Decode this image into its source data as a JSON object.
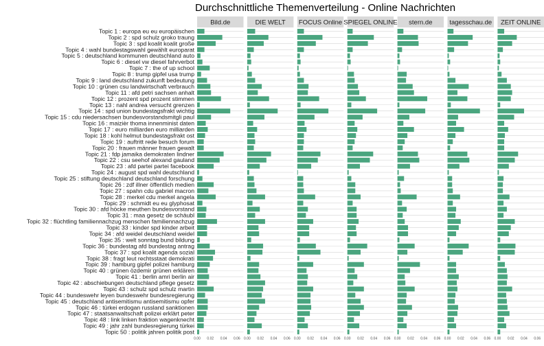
{
  "chart_data": {
    "type": "bar",
    "orientation": "horizontal",
    "title": "Durchschnittliche Themenverteilung - Online Nachrichten",
    "xlabel": "",
    "ylabel": "",
    "xlim": [
      0,
      0.07
    ],
    "x_ticks": [
      "0.00",
      "0.02",
      "0.04",
      "0.06"
    ],
    "x_tick_values": [
      0,
      0.02,
      0.04,
      0.06
    ],
    "grid": true,
    "bar_color": "#4aa57f",
    "strip_color": "#d9d9d9",
    "gridline_color": "#d4d4d4",
    "categories": [
      "Topic 1 : europa eu eu europäischen",
      "Topic 2 : spd schulz groko traung",
      "Topic 3 : spd koalit koalit große",
      "Topic 4 : wahl bundestagswahl gewählt europarat",
      "Topic 5 : deutschland kommunen deutschland auto",
      "Topic 6 : diesel vw diesel fahrverbot",
      "Topic 7 : the of up school",
      "Topic 8 : trump gipfel usa trump",
      "Topic 9 : land deutschland zukunft bedeutung",
      "Topic 10 : grünen csu landwirtschaft verbrauch",
      "Topic 11 : afd petri sachsen anhalt",
      "Topic 12 : prozent spd prozent stimmen",
      "Topic 13 : nahl andrea versucht grenzen",
      "Topic 14 : spd union bundestagsfrakt wichtig",
      "Topic 15 : cdu niedersachsen bundesvorstandsmitgli paul",
      "Topic 16 : maizièr thoma innenminist daten",
      "Topic 17 : euro milliarden euro milliarden",
      "Topic 18 : kohl helmut bundestagsfrakt ost",
      "Topic 19 : auftritt rede besuch forum",
      "Topic 20 : frauen männer frauen gewalt",
      "Topic 21 : fdp jamaika demokraten lindner",
      "Topic 22 : csu seehof alexand gauland",
      "Topic 23 : afd partei partei facebook",
      "Topic 24 : august spd wahl deutschland",
      "Topic 25 : stiftung deutschland deutschland forschung",
      "Topic 26 : zdf illner öffentlich medien",
      "Topic 27 : spahn cdu gabriel macron",
      "Topic 28 : merkel cdu merkel angela",
      "Topic 29 : schmidt eu eu glyphosat",
      "Topic 30 : afd höcke meuthen bundesvorstand",
      "Topic 31 : maa gesetz de schäubl",
      "Topic 32 : flüchtling familiennachzug menschen familiennachzug",
      "Topic 33 : kinder spd kinder arbeit",
      "Topic 34 : afd weidel deutschland weidel",
      "Topic 35 : welt sonntag bund bildung",
      "Topic 36 : bundestag afd bundestag antrag",
      "Topic 37 : spd koalit agenda sozial",
      "Topic 38 : fragt leut rechtsstaat demokrati",
      "Topic 39 : hamburg gipfel polizei hamburg",
      "Topic 40 : grünen özdemir grünen erklären",
      "Topic 41 : berlin amri berlin air",
      "Topic 42 : abschiebungen deutschland pflege gesetz",
      "Topic 43 : schulz spd schulz martin",
      "Topic 44 : bundeswehr leyen bundeswehr bundesregierung",
      "Topic 45 : deutschland antisemitismu antisemitismu opfer",
      "Topic 46 : türkei erdogan russland sanktionen",
      "Topic 47 : staatsanwaltschaft polizei erklärt peter",
      "Topic 48 : link linken fraktion wagenknecht",
      "Topic 49 : jahr zahl bundesregierung türkei",
      "Topic 50 : politik jahren politik post"
    ],
    "series": [
      {
        "name": "Bild.de",
        "values": [
          0.011,
          0.038,
          0.028,
          0.011,
          0.005,
          0.008,
          0.019,
          0.006,
          0.015,
          0.02,
          0.021,
          0.036,
          0.004,
          0.05,
          0.021,
          0.013,
          0.016,
          0.012,
          0.01,
          0.01,
          0.04,
          0.034,
          0.025,
          0.003,
          0.008,
          0.025,
          0.017,
          0.028,
          0.008,
          0.014,
          0.013,
          0.03,
          0.015,
          0.015,
          0.004,
          0.019,
          0.027,
          0.024,
          0.019,
          0.016,
          0.018,
          0.015,
          0.025,
          0.012,
          0.016,
          0.016,
          0.014,
          0.01,
          0.01,
          0.003
        ]
      },
      {
        "name": "DIE WELT",
        "values": [
          0.012,
          0.032,
          0.025,
          0.01,
          0.005,
          0.006,
          0.002,
          0.007,
          0.012,
          0.022,
          0.016,
          0.033,
          0.004,
          0.046,
          0.026,
          0.009,
          0.015,
          0.011,
          0.012,
          0.01,
          0.036,
          0.029,
          0.019,
          0.003,
          0.01,
          0.011,
          0.014,
          0.027,
          0.008,
          0.019,
          0.012,
          0.027,
          0.017,
          0.018,
          0.006,
          0.024,
          0.023,
          0.005,
          0.018,
          0.017,
          0.02,
          0.027,
          0.024,
          0.022,
          0.027,
          0.018,
          0.014,
          0.011,
          0.022,
          0.004
        ]
      },
      {
        "name": "FOCUS Online",
        "values": [
          0.01,
          0.038,
          0.028,
          0.01,
          0.004,
          0.005,
          0.002,
          0.004,
          0.01,
          0.017,
          0.016,
          0.033,
          0.005,
          0.047,
          0.026,
          0.011,
          0.014,
          0.01,
          0.01,
          0.009,
          0.035,
          0.031,
          0.021,
          0.001,
          0.009,
          0.009,
          0.01,
          0.027,
          0.009,
          0.016,
          0.013,
          0.024,
          0.018,
          0.018,
          0.004,
          0.028,
          0.035,
          0.003,
          0.024,
          0.014,
          0.016,
          0.015,
          0.024,
          0.02,
          0.02,
          0.021,
          0.019,
          0.011,
          0.016,
          0.003
        ]
      },
      {
        "name": "SPIEGEL ONLINE",
        "values": [
          0.008,
          0.04,
          0.031,
          0.008,
          0.004,
          0.005,
          0.001,
          0.01,
          0.011,
          0.016,
          0.018,
          0.028,
          0.006,
          0.045,
          0.023,
          0.011,
          0.015,
          0.013,
          0.011,
          0.008,
          0.039,
          0.034,
          0.019,
          0.002,
          0.006,
          0.012,
          0.012,
          0.02,
          0.008,
          0.014,
          0.014,
          0.017,
          0.013,
          0.014,
          0.004,
          0.03,
          0.02,
          0.002,
          0.025,
          0.011,
          0.015,
          0.009,
          0.025,
          0.012,
          0.02,
          0.025,
          0.019,
          0.01,
          0.018,
          0.003
        ]
      },
      {
        "name": "stern.de",
        "values": [
          0.009,
          0.031,
          0.032,
          0.007,
          0.003,
          0.004,
          0.001,
          0.014,
          0.013,
          0.023,
          0.025,
          0.045,
          0.003,
          0.042,
          0.018,
          0.009,
          0.025,
          0.015,
          0.011,
          0.008,
          0.031,
          0.033,
          0.019,
          0.002,
          0.01,
          0.004,
          0.005,
          0.029,
          0.007,
          0.014,
          0.008,
          0.011,
          0.016,
          0.016,
          0.003,
          0.026,
          0.015,
          0.002,
          0.034,
          0.019,
          0.011,
          0.012,
          0.026,
          0.014,
          0.013,
          0.022,
          0.015,
          0.009,
          0.014,
          0.002
        ]
      },
      {
        "name": "tagesschau.de",
        "values": [
          0.009,
          0.038,
          0.031,
          0.01,
          0.002,
          0.004,
          0.001,
          0.003,
          0.012,
          0.032,
          0.015,
          0.03,
          0.005,
          0.049,
          0.016,
          0.013,
          0.025,
          0.012,
          0.008,
          0.004,
          0.03,
          0.033,
          0.018,
          0.002,
          0.007,
          0.007,
          0.008,
          0.019,
          0.008,
          0.013,
          0.012,
          0.02,
          0.017,
          0.013,
          0.003,
          0.032,
          0.023,
          0.003,
          0.013,
          0.013,
          0.017,
          0.014,
          0.015,
          0.012,
          0.011,
          0.016,
          0.015,
          0.01,
          0.013,
          0.003
        ]
      },
      {
        "name": "ZEIT ONLINE",
        "values": [
          0.01,
          0.029,
          0.022,
          0.008,
          0.003,
          0.004,
          0.002,
          0.006,
          0.014,
          0.02,
          0.022,
          0.02,
          0.004,
          0.04,
          0.025,
          0.01,
          0.016,
          0.011,
          0.01,
          0.01,
          0.031,
          0.026,
          0.017,
          0.002,
          0.009,
          0.008,
          0.008,
          0.018,
          0.009,
          0.014,
          0.009,
          0.026,
          0.02,
          0.017,
          0.004,
          0.027,
          0.026,
          0.004,
          0.011,
          0.014,
          0.015,
          0.014,
          0.022,
          0.013,
          0.014,
          0.015,
          0.018,
          0.01,
          0.013,
          0.004
        ]
      }
    ]
  }
}
